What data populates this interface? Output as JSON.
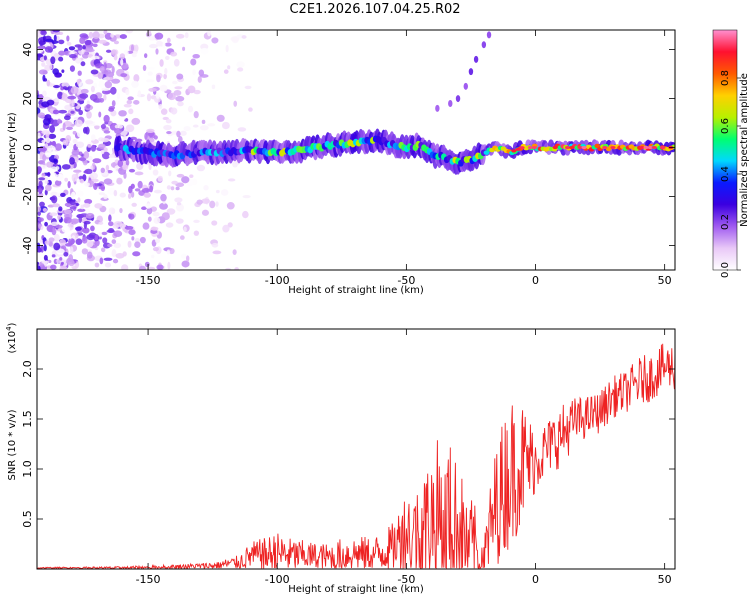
{
  "title": "C2E1.2026.107.04.25.R02",
  "colors": {
    "snr_line": "#ee2222",
    "frame": "#000000",
    "background": "#ffffff"
  },
  "chart_data": [
    {
      "type": "heatmap",
      "title": "C2E1.2026.107.04.25.R02",
      "xlabel": "Height of straight line (km)",
      "ylabel": "Frequency (Hz)",
      "xlim": [
        -193,
        54
      ],
      "ylim": [
        -50,
        48
      ],
      "x_ticks": [
        -150,
        -100,
        -50,
        0,
        50
      ],
      "y_ticks": [
        -40,
        -20,
        0,
        20,
        40
      ],
      "colorbar": {
        "label": "Normalized spectral amplitude",
        "range": [
          0,
          1
        ],
        "ticks": [
          "0.0",
          "0.2",
          "0.4",
          "0.6",
          "0.8"
        ],
        "colormap": [
          "#ffffff",
          "#e9c8f7",
          "#a05bf0",
          "#3b00e0",
          "#0a1aff",
          "#00d8ff",
          "#00ff70",
          "#b8f000",
          "#ffd000",
          "#ff5a00",
          "#ff1030",
          "#ff90d0"
        ]
      },
      "ridge": {
        "x": [
          -162,
          -150,
          -140,
          -130,
          -120,
          -110,
          -100,
          -90,
          -80,
          -70,
          -60,
          -55,
          -50,
          -45,
          -40,
          -35,
          -30,
          -25,
          -20,
          -15,
          -10,
          -5,
          0,
          10,
          20,
          30,
          40,
          50,
          54
        ],
        "frequency": [
          0,
          -2,
          -3,
          -2,
          -2,
          -1,
          -2,
          -1,
          1,
          2,
          3,
          1,
          0,
          1,
          -3,
          -4,
          -6,
          -5,
          -2,
          0,
          -2,
          0,
          0,
          0,
          0,
          0,
          0,
          0,
          0
        ]
      },
      "scatter_track": {
        "x": [
          -38,
          -33,
          -30,
          -27,
          -25,
          -23,
          -20,
          -18,
          -16
        ],
        "frequency": [
          16,
          18,
          20,
          25,
          31,
          36,
          42,
          46,
          50
        ]
      },
      "noise_region": {
        "x_start": -193,
        "x_end": -110,
        "frequency_range": [
          -50,
          48
        ]
      }
    },
    {
      "type": "line",
      "xlabel": "Height of straight line (km)",
      "ylabel": "SNR (10 * v/v)",
      "y_multiplier_label": "(x10",
      "y_multiplier_exponent": "4",
      "y_multiplier_close": ")",
      "xlim": [
        -193,
        54
      ],
      "ylim": [
        0,
        2.4
      ],
      "x_ticks": [
        -150,
        -100,
        -50,
        0,
        50
      ],
      "y_ticks": [
        "0.5",
        "1.0",
        "1.5",
        "2.0"
      ],
      "series": [
        {
          "name": "",
          "envelope_x": [
            -193,
            -160,
            -140,
            -125,
            -115,
            -110,
            -105,
            -100,
            -95,
            -90,
            -85,
            -80,
            -75,
            -70,
            -65,
            -60,
            -55,
            -50,
            -45,
            -40,
            -35,
            -30,
            -25,
            -20,
            -15,
            -10,
            -5,
            0,
            5,
            10,
            15,
            20,
            25,
            30,
            35,
            40,
            45,
            50,
            54
          ],
          "baseline": [
            0.01,
            0.01,
            0.02,
            0.03,
            0.06,
            0.12,
            0.12,
            0.14,
            0.12,
            0.12,
            0.11,
            0.1,
            0.12,
            0.14,
            0.13,
            0.14,
            0.2,
            0.35,
            0.3,
            0.45,
            0.5,
            0.35,
            0.2,
            0.1,
            0.6,
            0.9,
            1.0,
            1.05,
            1.2,
            1.3,
            1.45,
            1.5,
            1.55,
            1.7,
            1.75,
            1.85,
            1.9,
            2.0,
            2.0
          ],
          "amplitude": [
            0.01,
            0.02,
            0.03,
            0.05,
            0.1,
            0.2,
            0.25,
            0.3,
            0.25,
            0.22,
            0.2,
            0.2,
            0.25,
            0.25,
            0.25,
            0.28,
            0.35,
            0.6,
            0.7,
            1.0,
            1.2,
            0.9,
            0.7,
            0.4,
            0.9,
            1.1,
            0.9,
            0.45,
            0.4,
            0.45,
            0.35,
            0.3,
            0.3,
            0.3,
            0.3,
            0.35,
            0.35,
            0.35,
            0.35
          ]
        }
      ]
    }
  ]
}
